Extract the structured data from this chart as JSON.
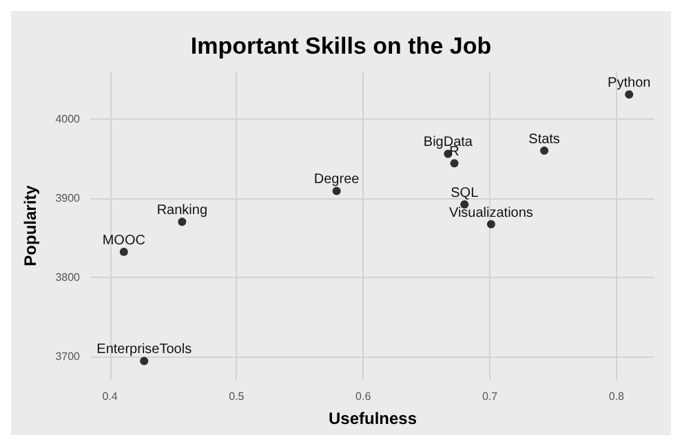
{
  "chart_data": {
    "type": "scatter",
    "title": "Important Skills on the Job",
    "xlabel": "Usefulness",
    "ylabel": "Popularity",
    "xlim": [
      0.385,
      0.83
    ],
    "ylim": [
      3670,
      4060
    ],
    "xticks": [
      0.4,
      0.5,
      0.6,
      0.7,
      0.8
    ],
    "yticks": [
      3700,
      3800,
      3900,
      4000
    ],
    "grid": true,
    "marker": "circle",
    "series": [
      {
        "color": "#000000",
        "x": [
          0.411,
          0.457,
          0.579,
          0.427,
          0.81,
          0.667,
          0.672,
          0.743,
          0.68,
          0.701
        ],
        "values": [
          3832,
          3870,
          3909,
          3694,
          4031,
          3956,
          3944,
          3960,
          3892,
          3867
        ]
      }
    ],
    "annotations": [
      {
        "text": "MOOC",
        "x": 0.411,
        "y": 3832
      },
      {
        "text": "Ranking",
        "x": 0.457,
        "y": 3870
      },
      {
        "text": "Degree",
        "x": 0.579,
        "y": 3909
      },
      {
        "text": "EnterpriseTools",
        "x": 0.427,
        "y": 3694
      },
      {
        "text": "Python",
        "x": 0.81,
        "y": 4031
      },
      {
        "text": "BigData",
        "x": 0.667,
        "y": 3956
      },
      {
        "text": "R",
        "x": 0.672,
        "y": 3944
      },
      {
        "text": "Stats",
        "x": 0.743,
        "y": 3960
      },
      {
        "text": "SQL",
        "x": 0.68,
        "y": 3892
      },
      {
        "text": "Visualizations",
        "x": 0.701,
        "y": 3867
      }
    ]
  }
}
